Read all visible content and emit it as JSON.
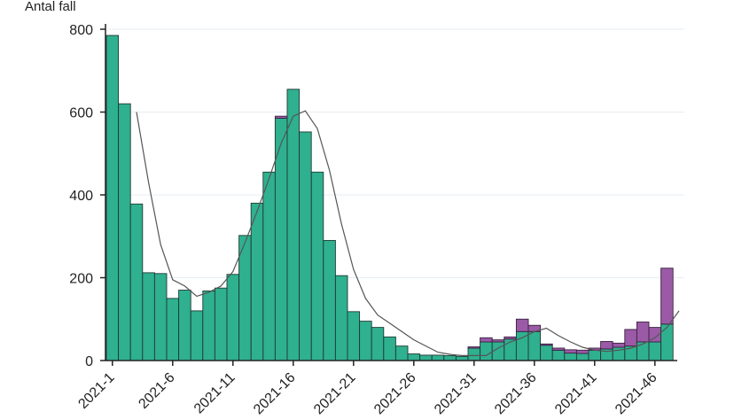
{
  "chart_data": {
    "type": "bar",
    "stacked": true,
    "ylabel": "Antal fall",
    "ylim": [
      0,
      800
    ],
    "yticks": [
      0,
      200,
      400,
      600,
      800
    ],
    "grid": true,
    "categories": [
      "2021-1",
      "2021-2",
      "2021-3",
      "2021-4",
      "2021-5",
      "2021-6",
      "2021-7",
      "2021-8",
      "2021-9",
      "2021-10",
      "2021-11",
      "2021-12",
      "2021-13",
      "2021-14",
      "2021-15",
      "2021-16",
      "2021-17",
      "2021-18",
      "2021-19",
      "2021-20",
      "2021-21",
      "2021-22",
      "2021-23",
      "2021-24",
      "2021-25",
      "2021-26",
      "2021-27",
      "2021-28",
      "2021-29",
      "2021-30",
      "2021-31",
      "2021-32",
      "2021-33",
      "2021-34",
      "2021-35",
      "2021-36",
      "2021-37",
      "2021-38",
      "2021-39",
      "2021-40",
      "2021-41",
      "2021-42",
      "2021-43",
      "2021-44",
      "2021-45",
      "2021-46",
      "2021-47"
    ],
    "xtick_labels": [
      "2021-1",
      "2021-6",
      "2021-11",
      "2021-16",
      "2021-21",
      "2021-26",
      "2021-31",
      "2021-36",
      "2021-41",
      "2021-46"
    ],
    "series": [
      {
        "color": "#2fb08f",
        "values": [
          785,
          620,
          378,
          212,
          210,
          150,
          170,
          120,
          168,
          175,
          208,
          302,
          380,
          455,
          585,
          655,
          552,
          455,
          290,
          205,
          118,
          95,
          80,
          57,
          35,
          16,
          13,
          13,
          12,
          10,
          30,
          45,
          45,
          52,
          70,
          70,
          37,
          25,
          18,
          17,
          25,
          28,
          32,
          35,
          45,
          45,
          88
        ]
      },
      {
        "color": "#9a5aa6",
        "values": [
          0,
          0,
          0,
          0,
          0,
          0,
          0,
          0,
          0,
          0,
          0,
          0,
          0,
          0,
          5,
          0,
          0,
          0,
          0,
          0,
          0,
          0,
          0,
          0,
          0,
          0,
          0,
          0,
          0,
          0,
          3,
          10,
          5,
          5,
          30,
          15,
          3,
          5,
          8,
          8,
          5,
          18,
          10,
          40,
          48,
          35,
          135
        ]
      }
    ],
    "trend_line": {
      "color": "#555555",
      "x_start_index": 2,
      "values": [
        600,
        430,
        280,
        195,
        180,
        155,
        165,
        180,
        215,
        285,
        360,
        440,
        525,
        590,
        603,
        560,
        460,
        330,
        220,
        150,
        110,
        90,
        70,
        50,
        35,
        20,
        15,
        12,
        12,
        12,
        30,
        45,
        55,
        70,
        78,
        60,
        45,
        32,
        25,
        22,
        25,
        30,
        40,
        55,
        80,
        120
      ]
    }
  }
}
